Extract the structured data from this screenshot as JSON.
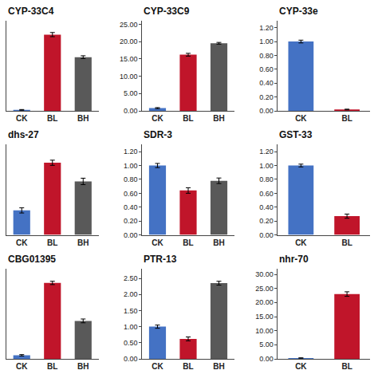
{
  "chart_data": [
    {
      "type": "bar",
      "title": "CYP-33C4",
      "categories": [
        "CK",
        "BL",
        "BH"
      ],
      "values": [
        0.3,
        22.0,
        15.5
      ],
      "errors": [
        0.1,
        0.6,
        0.4
      ],
      "colors": [
        "#4472C4",
        "#C0152A",
        "#595959"
      ],
      "ylim": [
        0,
        26
      ],
      "tick_labels": "x",
      "grid": false
    },
    {
      "type": "bar",
      "title": "CYP-33C9",
      "categories": [
        "CK",
        "BL",
        "BH"
      ],
      "values": [
        0.8,
        16.2,
        19.5
      ],
      "errors": [
        0.15,
        0.4,
        0.25
      ],
      "colors": [
        "#4472C4",
        "#C0152A",
        "#595959"
      ],
      "ylim": [
        0,
        26
      ],
      "yticks": [
        {
          "value": 0,
          "label": "0.00"
        },
        {
          "value": 5,
          "label": "5.00"
        },
        {
          "value": 10,
          "label": "10.00"
        },
        {
          "value": 15,
          "label": "15.00"
        },
        {
          "value": 20,
          "label": "20.00"
        },
        {
          "value": 25,
          "label": "25.00"
        }
      ],
      "grid": false
    },
    {
      "type": "bar",
      "title": "CYP-33e",
      "categories": [
        "CK",
        "BL"
      ],
      "values": [
        1.0,
        0.02
      ],
      "errors": [
        0.02,
        0.005
      ],
      "colors": [
        "#4472C4",
        "#C0152A"
      ],
      "ylim": [
        0,
        1.3
      ],
      "yticks": [
        {
          "value": 0,
          "label": "0.00"
        },
        {
          "value": 0.2,
          "label": "0.20"
        },
        {
          "value": 0.4,
          "label": "0.40"
        },
        {
          "value": 0.6,
          "label": "0.60"
        },
        {
          "value": 0.8,
          "label": "0.80"
        },
        {
          "value": 1.0,
          "label": "1.00"
        },
        {
          "value": 1.2,
          "label": "1.20"
        }
      ],
      "grid": false
    },
    {
      "type": "bar",
      "title": "dhs-27",
      "categories": [
        "CK",
        "BL",
        "BH"
      ],
      "values": [
        0.38,
        1.12,
        0.83
      ],
      "errors": [
        0.04,
        0.04,
        0.05
      ],
      "colors": [
        "#4472C4",
        "#C0152A",
        "#595959"
      ],
      "ylim": [
        0,
        1.4
      ],
      "tick_labels": "x",
      "grid": false
    },
    {
      "type": "bar",
      "title": "SDR-3",
      "categories": [
        "CK",
        "BL",
        "BH"
      ],
      "values": [
        1.0,
        0.64,
        0.78
      ],
      "errors": [
        0.03,
        0.04,
        0.04
      ],
      "colors": [
        "#4472C4",
        "#C0152A",
        "#595959"
      ],
      "ylim": [
        0,
        1.3
      ],
      "yticks": [
        {
          "value": 0,
          "label": "0.00"
        },
        {
          "value": 0.2,
          "label": "0.20"
        },
        {
          "value": 0.4,
          "label": "0.40"
        },
        {
          "value": 0.6,
          "label": "0.60"
        },
        {
          "value": 0.8,
          "label": "0.80"
        },
        {
          "value": 1.0,
          "label": "1.00"
        },
        {
          "value": 1.2,
          "label": "1.20"
        }
      ],
      "grid": false
    },
    {
      "type": "bar",
      "title": "GST-33",
      "categories": [
        "CK",
        "BL"
      ],
      "values": [
        1.0,
        0.27
      ],
      "errors": [
        0.02,
        0.03
      ],
      "colors": [
        "#4472C4",
        "#C0152A"
      ],
      "ylim": [
        0,
        1.3
      ],
      "yticks": [
        {
          "value": 0,
          "label": "0.00"
        },
        {
          "value": 0.2,
          "label": "0.20"
        },
        {
          "value": 0.4,
          "label": "0.40"
        },
        {
          "value": 0.6,
          "label": "0.60"
        },
        {
          "value": 0.8,
          "label": "0.80"
        },
        {
          "value": 1.0,
          "label": "1.00"
        },
        {
          "value": 1.2,
          "label": "1.20"
        }
      ],
      "grid": false
    },
    {
      "type": "bar",
      "title": "CBG01395",
      "categories": [
        "CK",
        "BL",
        "BH"
      ],
      "values": [
        0.15,
        3.2,
        1.6
      ],
      "errors": [
        0.03,
        0.07,
        0.08
      ],
      "colors": [
        "#4472C4",
        "#C0152A",
        "#595959"
      ],
      "ylim": [
        0,
        3.8
      ],
      "tick_labels": "x",
      "grid": false
    },
    {
      "type": "bar",
      "title": "PTR-13",
      "categories": [
        "CK",
        "BL",
        "BH"
      ],
      "values": [
        1.0,
        0.62,
        2.35
      ],
      "errors": [
        0.05,
        0.06,
        0.06
      ],
      "colors": [
        "#4472C4",
        "#C0152A",
        "#595959"
      ],
      "ylim": [
        0,
        2.8
      ],
      "yticks": [
        {
          "value": 0,
          "label": "0.00"
        },
        {
          "value": 0.5,
          "label": "0.50"
        },
        {
          "value": 1.0,
          "label": "1.00"
        },
        {
          "value": 1.5,
          "label": "1.50"
        },
        {
          "value": 2.0,
          "label": "2.00"
        },
        {
          "value": 2.5,
          "label": "2.50"
        }
      ],
      "grid": false
    },
    {
      "type": "bar",
      "title": "nhr-70",
      "categories": [
        "CK",
        "BL"
      ],
      "values": [
        0.3,
        23.0
      ],
      "errors": [
        0.05,
        0.8
      ],
      "colors": [
        "#4472C4",
        "#C0152A"
      ],
      "ylim": [
        0,
        32
      ],
      "yticks": [
        {
          "value": 0,
          "label": "0.00"
        },
        {
          "value": 5,
          "label": "5.00"
        },
        {
          "value": 10,
          "label": "10.00"
        },
        {
          "value": 15,
          "label": "15.00"
        },
        {
          "value": 20,
          "label": "20.00"
        },
        {
          "value": 25,
          "label": "25.00"
        },
        {
          "value": 30,
          "label": "30.00"
        }
      ],
      "grid": false
    }
  ]
}
